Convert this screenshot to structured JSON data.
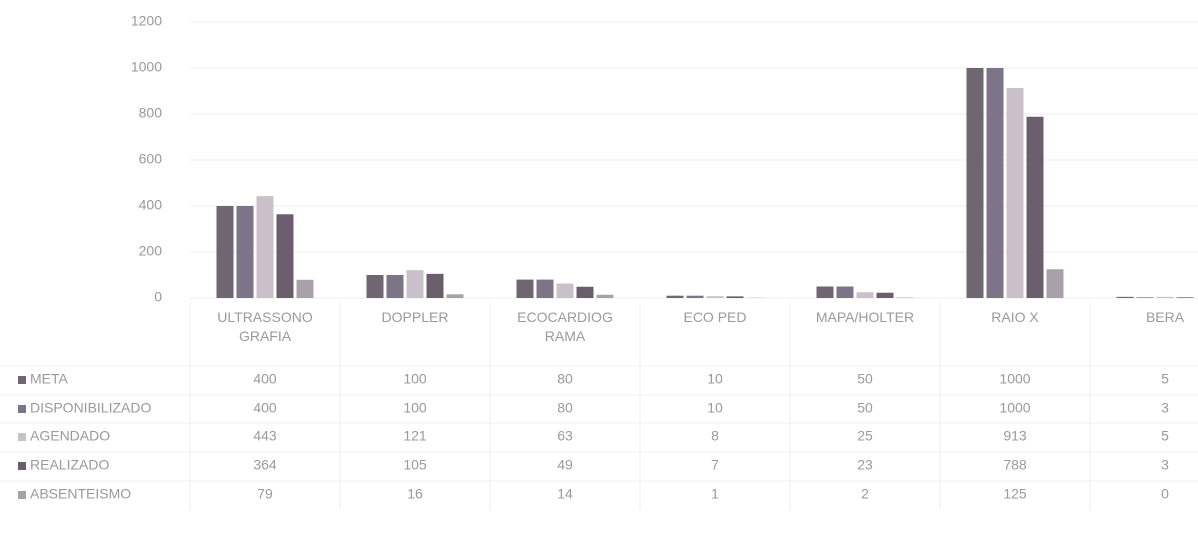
{
  "chart_data": {
    "type": "bar",
    "categories": [
      "ULTRASSONOGRAFIA",
      "DOPPLER",
      "ECOCARDIOGRAMA",
      "ECO PED",
      "MAPA/HOLTER",
      "RAIO X",
      "BERA"
    ],
    "series": [
      {
        "name": "META",
        "color": "#6f6672",
        "values": [
          400,
          100,
          80,
          10,
          50,
          1000,
          5
        ]
      },
      {
        "name": "DISPONIBILIZADO",
        "color": "#7d7488",
        "values": [
          400,
          100,
          80,
          10,
          50,
          1000,
          3
        ]
      },
      {
        "name": "AGENDADO",
        "color": "#c9c0c9",
        "values": [
          443,
          121,
          63,
          8,
          25,
          913,
          5
        ]
      },
      {
        "name": "REALIZADO",
        "color": "#6a5e6c",
        "values": [
          364,
          105,
          49,
          7,
          23,
          788,
          3
        ]
      },
      {
        "name": "ABSENTEISMO",
        "color": "#a9a1aa",
        "values": [
          79,
          16,
          14,
          1,
          2,
          125,
          0
        ]
      }
    ],
    "ylim": [
      0,
      1200
    ],
    "yticks": [
      0,
      200,
      400,
      600,
      800,
      1000,
      1200
    ],
    "grid": true
  }
}
